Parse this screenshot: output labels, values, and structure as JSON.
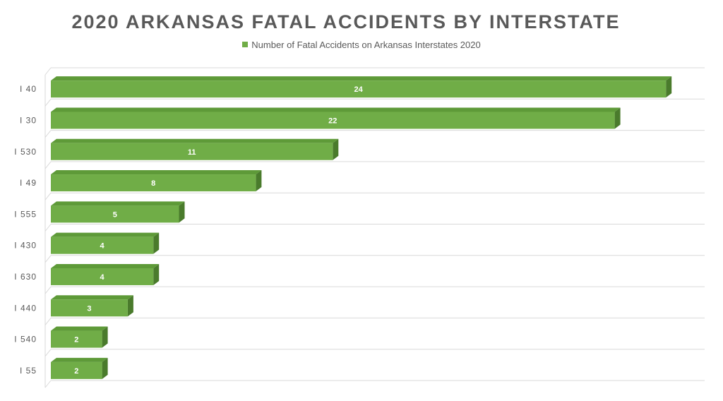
{
  "chart_data": {
    "type": "bar",
    "orientation": "horizontal",
    "title": "2020 ARKANSAS FATAL ACCIDENTS BY INTERSTATE",
    "categories": [
      "I 40",
      "I 30",
      "I 530",
      "I 49",
      "I 555",
      "I 430",
      "I 630",
      "I 440",
      "I 540",
      "I 55"
    ],
    "series": [
      {
        "name": "Number of Fatal Accidents on Arkansas Interstates 2020",
        "values": [
          24,
          22,
          11,
          8,
          5,
          4,
          4,
          3,
          2,
          2
        ],
        "color": "#70ad47",
        "shade_top": "#5e9a38",
        "shade_side": "#4a7b2c"
      }
    ],
    "data_labels": true,
    "grid": true,
    "legend_position": "top",
    "style": "3d-bar",
    "xlim": [
      0,
      25
    ]
  }
}
